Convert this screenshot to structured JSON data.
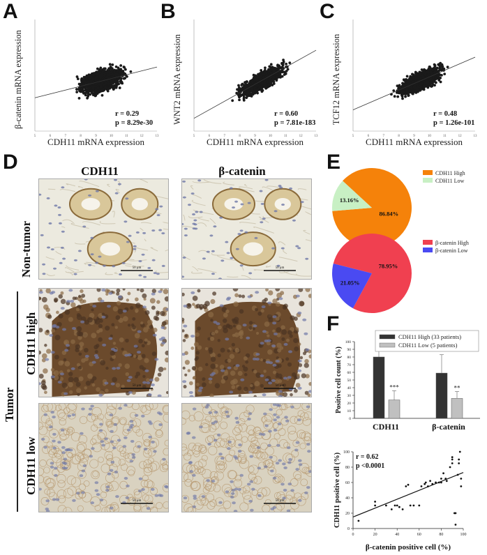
{
  "figure": {
    "panel_labels": {
      "A": "A",
      "B": "B",
      "C": "C",
      "D": "D",
      "E": "E",
      "F": "F"
    },
    "scatter_panels": [
      {
        "ylabel": "β-catenin mRNA expression",
        "xlabel": "CDH11 mRNA expression",
        "r": "r = 0.29",
        "p": "p = 8.29e-30"
      },
      {
        "ylabel": "WNT2 mRNA expression",
        "xlabel": "CDH11 mRNA expression",
        "r": "r = 0.60",
        "p": "p = 7.81e-183"
      },
      {
        "ylabel": "TCF12 mRNA expression",
        "xlabel": "CDH11 mRNA expression",
        "r": "r = 0.48",
        "p": "p = 1.26e-101"
      }
    ],
    "ihc": {
      "col_titles": [
        "CDH11",
        "β-catenin"
      ],
      "row_labels": {
        "non_tumor": "Non-tumor",
        "cdh11_high": "CDH11 high",
        "cdh11_low": "CDH11 low",
        "tumor": "Tumor"
      },
      "scale_bar": "50 μm",
      "colors": {
        "nontumor_bg": "#eceadf",
        "high_bg": "#6b4a2c",
        "low_bg": "#d9d2c0",
        "nuclei": "#7079a8"
      }
    }
  },
  "chart_data": [
    {
      "type": "pie",
      "legend": [
        "CDH11 High",
        "CDH11 Low"
      ],
      "values": [
        86.84,
        13.16
      ],
      "labels": [
        "86.84%",
        "13.16%"
      ],
      "colors": [
        "#f5820a",
        "#c8f0c4"
      ]
    },
    {
      "type": "pie",
      "legend": [
        "β-catenin High",
        "β-catenin Low"
      ],
      "values": [
        78.95,
        21.05
      ],
      "labels": [
        "78.95%",
        "21.05%"
      ],
      "colors": [
        "#f04050",
        "#4a4af2"
      ]
    },
    {
      "type": "bar",
      "categories": [
        "CDH11",
        "β-catenin"
      ],
      "series": [
        {
          "name": "CDH11 High (33 patients)",
          "values": [
            80,
            59
          ],
          "errors": [
            20,
            24
          ],
          "color": "#333333"
        },
        {
          "name": "CDH11 Low (5 patients)",
          "values": [
            24,
            26
          ],
          "errors": [
            12,
            9
          ],
          "color": "#c0c0c0"
        }
      ],
      "significance": [
        "***",
        "**"
      ],
      "ylabel": "Positive cell count (%)",
      "ylim": [
        0,
        100
      ],
      "yticks": [
        0,
        10,
        20,
        30,
        40,
        50,
        60,
        70,
        80,
        90,
        100
      ]
    },
    {
      "type": "scatter",
      "x": [
        5,
        20,
        20,
        30,
        35,
        38,
        40,
        42,
        45,
        48,
        50,
        52,
        55,
        60,
        62,
        65,
        66,
        68,
        70,
        72,
        75,
        78,
        80,
        80,
        82,
        84,
        85,
        88,
        90,
        90,
        90,
        92,
        93,
        93,
        95,
        96,
        96,
        97,
        98,
        98
      ],
      "y": [
        10,
        35,
        30,
        30,
        25,
        30,
        30,
        28,
        25,
        55,
        57,
        30,
        30,
        30,
        55,
        58,
        60,
        55,
        62,
        58,
        60,
        60,
        65,
        60,
        72,
        65,
        62,
        80,
        93,
        90,
        85,
        20,
        20,
        5,
        70,
        90,
        85,
        100,
        65,
        55
      ],
      "fit": {
        "x": [
          0,
          100
        ],
        "y": [
          15,
          73
        ]
      },
      "annotation": [
        "r = 0.62",
        "p <0.0001"
      ],
      "xlabel": "β-catenin positive cell (%)",
      "ylabel": "CDH11 positive cell (%)",
      "xlim": [
        0,
        100
      ],
      "ylim": [
        0,
        100
      ],
      "ticks": [
        0,
        20,
        40,
        60,
        80,
        100
      ]
    }
  ]
}
